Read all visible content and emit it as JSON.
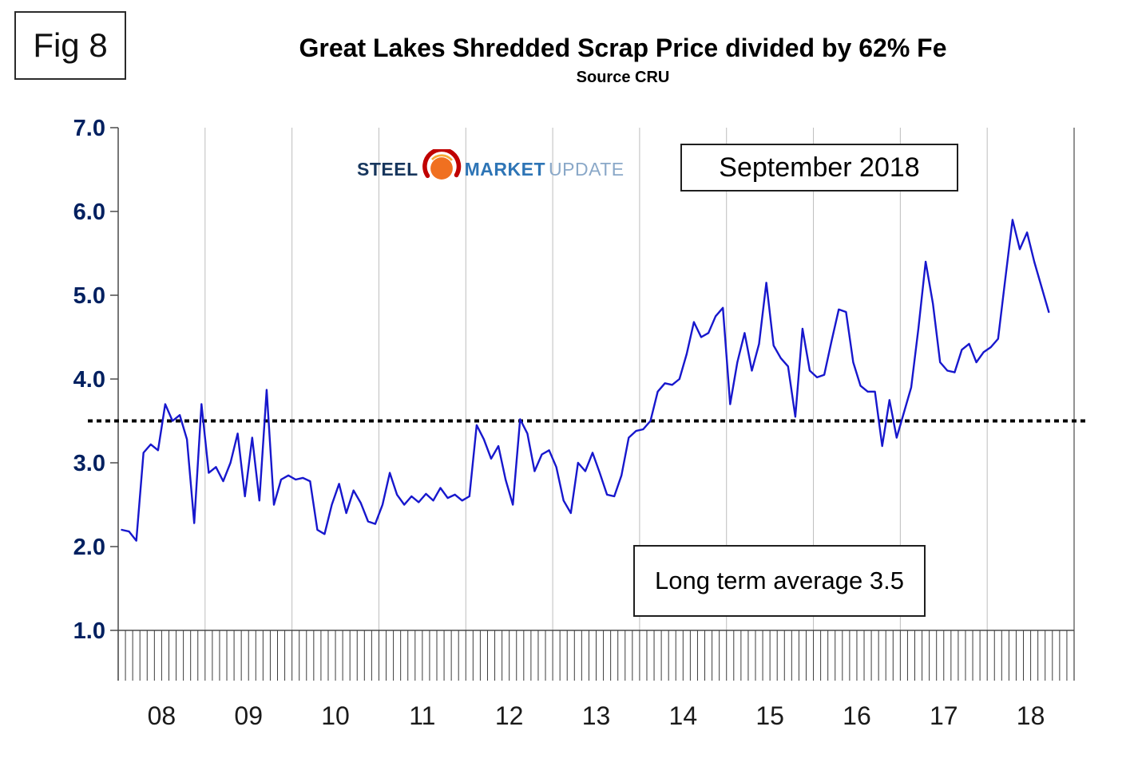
{
  "fig_label": "Fig 8",
  "title": "Great Lakes Shredded Scrap Price divided by 62% Fe",
  "subtitle": "Source CRU",
  "date_annotation": "September 2018",
  "average_annotation": "Long term average 3.5",
  "logo": {
    "word1": "STEEL",
    "word2": "MARKET",
    "word3": "UPDATE"
  },
  "colors": {
    "series_line": "#1717cd",
    "axis_label": "#002060",
    "year_label": "#1a1a1a",
    "gridline": "#bdbdbd",
    "axis_line": "#4a4a4a",
    "tick": "#3c3c3c",
    "average_line": "#000000",
    "logo_dark_blue": "#17365d",
    "logo_blue": "#2e75b6",
    "logo_light_blue": "#8aa8c8",
    "logo_orange": "#f07020",
    "logo_red": "#c00000"
  },
  "chart_data": {
    "type": "line",
    "title": "Great Lakes Shredded Scrap Price divided by 62% Fe",
    "source": "CRU",
    "as_of": "September 2018",
    "long_term_average": 3.5,
    "ylim": [
      1.0,
      7.0
    ],
    "y_ticks": [
      "7.0",
      "6.0",
      "5.0",
      "4.0",
      "3.0",
      "2.0",
      "1.0"
    ],
    "x_tick_labels": [
      "08",
      "09",
      "10",
      "11",
      "12",
      "13",
      "14",
      "15",
      "16",
      "17",
      "18"
    ],
    "x_start_month": "2008-01",
    "x_end_month": "2018-09",
    "grid": "vertical-year-lines",
    "legend": "none",
    "series": [
      {
        "name": "Shredded scrap price / 62% Fe",
        "monthly_values": [
          2.2,
          2.18,
          2.07,
          3.12,
          3.22,
          3.15,
          3.7,
          3.5,
          3.57,
          3.28,
          2.28,
          3.7,
          2.88,
          2.95,
          2.78,
          3.0,
          3.35,
          2.6,
          3.3,
          2.55,
          3.87,
          2.5,
          2.8,
          2.85,
          2.8,
          2.82,
          2.78,
          2.2,
          2.15,
          2.5,
          2.75,
          2.4,
          2.67,
          2.52,
          2.3,
          2.27,
          2.5,
          2.88,
          2.62,
          2.5,
          2.6,
          2.53,
          2.63,
          2.55,
          2.7,
          2.58,
          2.62,
          2.55,
          2.6,
          3.45,
          3.28,
          3.05,
          3.2,
          2.8,
          2.5,
          3.52,
          3.35,
          2.9,
          3.1,
          3.15,
          2.95,
          2.55,
          2.4,
          3.0,
          2.9,
          3.12,
          2.88,
          2.62,
          2.6,
          2.85,
          3.3,
          3.38,
          3.4,
          3.5,
          3.85,
          3.95,
          3.93,
          4.0,
          4.3,
          4.68,
          4.5,
          4.55,
          4.75,
          4.85,
          3.7,
          4.2,
          4.55,
          4.1,
          4.42,
          5.15,
          4.4,
          4.25,
          4.15,
          3.55,
          4.6,
          4.1,
          4.02,
          4.05,
          4.45,
          4.83,
          4.8,
          4.2,
          3.92,
          3.85,
          3.85,
          3.2,
          3.75,
          3.3,
          3.6,
          3.9,
          4.6,
          5.4,
          4.9,
          4.2,
          4.1,
          4.08,
          4.35,
          4.42,
          4.2,
          4.32,
          4.38,
          4.48,
          5.2,
          5.9,
          5.55,
          5.75,
          5.4,
          5.1,
          4.8
        ]
      }
    ]
  }
}
